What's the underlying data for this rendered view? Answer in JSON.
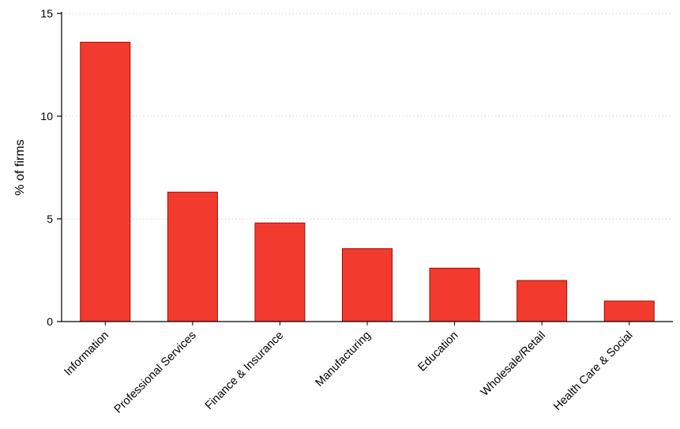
{
  "chart_data": {
    "type": "bar",
    "categories": [
      "Information",
      "Professional Services",
      "Finance & Insurance",
      "Manufacturing",
      "Education",
      "Wholesale/Retail",
      "Health Care & Social"
    ],
    "values": [
      13.6,
      6.3,
      4.8,
      3.55,
      2.6,
      2.0,
      1.0
    ],
    "title": "",
    "xlabel": "",
    "ylabel": "% of firms",
    "ylim": [
      0,
      15
    ],
    "yticks": [
      0,
      5,
      10,
      15
    ],
    "grid": "horizontal dotted at yticks above 0",
    "legend": "none",
    "colors": {
      "bar_fill": "#f23b2e",
      "bar_stroke": "#961008",
      "grid": "#cfcfcf",
      "axis": "#000000"
    }
  }
}
